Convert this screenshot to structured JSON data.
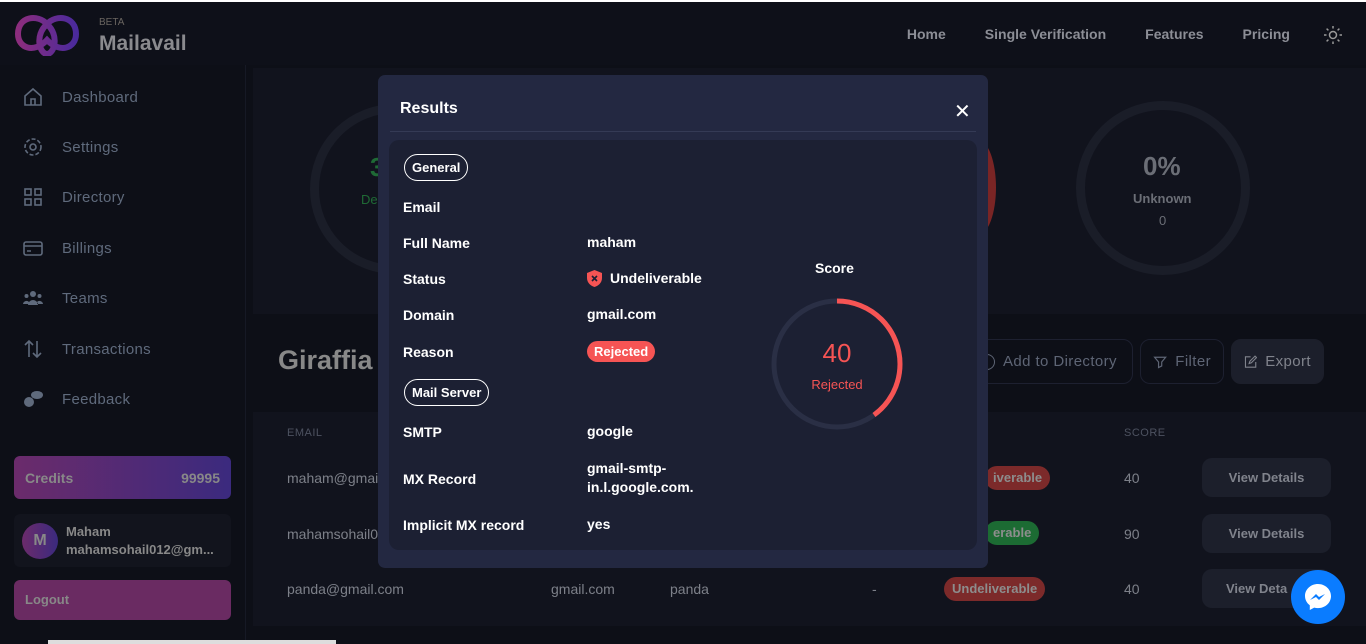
{
  "header": {
    "beta": "BETA",
    "brand": "Mailavail",
    "nav": [
      "Home",
      "Single Verification",
      "Features",
      "Pricing"
    ]
  },
  "sidebar": {
    "items": [
      {
        "label": "Dashboard",
        "icon": "home-icon"
      },
      {
        "label": "Settings",
        "icon": "gear-icon"
      },
      {
        "label": "Directory",
        "icon": "grid-icon"
      },
      {
        "label": "Billings",
        "icon": "card-icon"
      },
      {
        "label": "Teams",
        "icon": "users-icon"
      },
      {
        "label": "Transactions",
        "icon": "arrows-icon"
      },
      {
        "label": "Feedback",
        "icon": "chat-icon"
      }
    ],
    "credits_label": "Credits",
    "credits_value": "99995",
    "user_initial": "M",
    "user_name": "Maham",
    "user_email": "mahamsohail012@gm...",
    "logout": "Logout"
  },
  "stats": {
    "deliverable_pct": "3",
    "deliverable_label": "De",
    "unknown_pct": "0%",
    "unknown_label": "Unknown",
    "unknown_count": "0"
  },
  "list": {
    "title": "Giraffia",
    "add_dir": "Add to Directory",
    "filter": "Filter",
    "export": "Export",
    "headers": {
      "email": "EMAIL",
      "score": "SCORE"
    },
    "rows": [
      {
        "email": "maham@gmail",
        "status": "iverable",
        "score": "40",
        "action": "View Details"
      },
      {
        "email": "mahamsohail0",
        "status": "erable",
        "score": "90",
        "action": "View Details"
      },
      {
        "email": "panda@gmail.com",
        "domain": "gmail.com",
        "name": "panda",
        "dash": "-",
        "status": "Undeliverable",
        "score": "40",
        "action": "View Deta"
      }
    ]
  },
  "modal": {
    "title": "Results",
    "general": "General",
    "mail_server": "Mail Server",
    "fields": {
      "email_label": "Email",
      "full_name_label": "Full Name",
      "full_name": "maham",
      "status_label": "Status",
      "status": "Undeliverable",
      "domain_label": "Domain",
      "domain": "gmail.com",
      "reason_label": "Reason",
      "reason": "Rejected",
      "smtp_label": "SMTP",
      "smtp": "google",
      "mx_label": "MX Record",
      "mx_1": "gmail-smtp-",
      "mx_2": "in.l.google.com.",
      "imx_label": "Implicit MX record",
      "imx": "yes"
    },
    "score_title": "Score",
    "score": 40,
    "score_label": "Rejected",
    "score_color": "#f65454"
  }
}
